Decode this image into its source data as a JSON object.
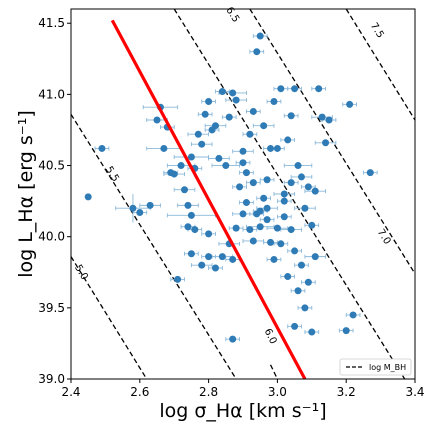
{
  "chart_data": {
    "type": "scatter",
    "xlabel": "log σ_Hα [km s⁻¹]",
    "ylabel": "log L_Hα [erg s⁻¹]",
    "xlim": [
      2.4,
      3.4
    ],
    "ylim": [
      39.0,
      41.6
    ],
    "x_ticks": [
      "2.4",
      "2.6",
      "2.8",
      "3.0",
      "3.2",
      "3.4"
    ],
    "y_ticks": [
      "39.0",
      "39.5",
      "40.0",
      "40.5",
      "41.0",
      "41.5"
    ],
    "legend": {
      "label": "log M_BH",
      "placement": "bottom-right"
    },
    "colors": {
      "points": "#2f7bb6",
      "error_bars": "#8ab8da",
      "fit_line": "#ff0000",
      "contours": "#000000"
    },
    "contours": [
      {
        "label": "5.0",
        "points": [
          [
            2.4,
            39.86
          ],
          [
            2.62,
            39.0
          ]
        ]
      },
      {
        "label": "5.5",
        "points": [
          [
            2.4,
            40.86
          ],
          [
            2.88,
            39.0
          ]
        ]
      },
      {
        "label": "6.0",
        "points": [
          [
            2.98,
            39.1
          ],
          [
            3.0,
            39.0
          ]
        ]
      },
      {
        "label": "6.5",
        "points": [
          [
            2.7,
            41.6
          ],
          [
            3.37,
            39.0
          ]
        ]
      },
      {
        "label": "7.0",
        "points": [
          [
            2.92,
            41.6
          ],
          [
            3.4,
            39.74
          ]
        ]
      },
      {
        "label": "7.5",
        "points": [
          [
            3.2,
            41.6
          ],
          [
            3.4,
            40.82
          ]
        ]
      }
    ],
    "contour_labels": [
      {
        "text": "5.0",
        "x": 2.43,
        "y": 39.75
      },
      {
        "text": "5.5",
        "x": 2.52,
        "y": 40.44
      },
      {
        "text": "6.5",
        "x": 2.87,
        "y": 41.56
      },
      {
        "text": "6.0",
        "x": 2.98,
        "y": 39.3
      },
      {
        "text": "7.0",
        "x": 3.31,
        "y": 40.0
      },
      {
        "text": "7.5",
        "x": 3.29,
        "y": 41.45
      }
    ],
    "fit_line": {
      "points": [
        [
          2.52,
          41.52
        ],
        [
          3.08,
          39.0
        ]
      ]
    },
    "series": [
      {
        "points": [
          [
            2.45,
            40.28,
            0.0,
            0.0
          ],
          [
            2.49,
            40.62,
            0.02,
            0.0
          ],
          [
            2.58,
            40.2,
            0.05,
            0.1
          ],
          [
            2.6,
            40.17,
            0.02,
            0.0
          ],
          [
            2.63,
            40.22,
            0.03,
            0.0
          ],
          [
            2.65,
            40.82,
            0.03,
            0.0
          ],
          [
            2.66,
            40.91,
            0.05,
            0.0
          ],
          [
            2.67,
            40.62,
            0.05,
            0.0
          ],
          [
            2.68,
            40.77,
            0.02,
            0.0
          ],
          [
            2.69,
            40.45,
            0.02,
            0.0
          ],
          [
            2.7,
            40.44,
            0.03,
            0.0
          ],
          [
            2.72,
            40.5,
            0.04,
            0.0
          ],
          [
            2.73,
            40.33,
            0.03,
            0.0
          ],
          [
            2.74,
            40.22,
            0.03,
            0.0
          ],
          [
            2.75,
            40.56,
            0.05,
            0.0
          ],
          [
            2.76,
            40.48,
            0.02,
            0.0
          ],
          [
            2.77,
            40.72,
            0.03,
            0.0
          ],
          [
            2.78,
            40.65,
            0.03,
            0.0
          ],
          [
            2.79,
            40.86,
            0.02,
            0.0
          ],
          [
            2.8,
            40.95,
            0.02,
            0.0
          ],
          [
            2.81,
            40.75,
            0.02,
            0.0
          ],
          [
            2.82,
            40.78,
            0.03,
            0.0
          ],
          [
            2.83,
            40.55,
            0.03,
            0.0
          ],
          [
            2.84,
            41.02,
            0.02,
            0.0
          ],
          [
            2.85,
            40.5,
            0.04,
            0.0
          ],
          [
            2.86,
            40.84,
            0.02,
            0.0
          ],
          [
            2.87,
            41.01,
            0.04,
            0.0
          ],
          [
            2.88,
            40.96,
            0.03,
            0.0
          ],
          [
            2.89,
            40.35,
            0.02,
            0.0
          ],
          [
            2.9,
            40.6,
            0.03,
            0.0
          ],
          [
            2.91,
            40.45,
            0.02,
            0.0
          ],
          [
            2.92,
            40.72,
            0.02,
            0.0
          ],
          [
            2.93,
            40.88,
            0.02,
            0.0
          ],
          [
            2.94,
            41.3,
            0.02,
            0.0
          ],
          [
            2.95,
            41.41,
            0.02,
            0.0
          ],
          [
            2.96,
            40.78,
            0.03,
            0.0
          ],
          [
            2.97,
            40.4,
            0.02,
            0.0
          ],
          [
            2.98,
            40.62,
            0.02,
            0.0
          ],
          [
            2.99,
            40.95,
            0.02,
            0.0
          ],
          [
            3.0,
            40.62,
            0.02,
            0.0
          ],
          [
            3.01,
            41.04,
            0.02,
            0.0
          ],
          [
            3.02,
            40.3,
            0.03,
            0.0
          ],
          [
            3.03,
            40.68,
            0.02,
            0.0
          ],
          [
            3.04,
            40.85,
            0.02,
            0.0
          ],
          [
            3.05,
            41.04,
            0.02,
            0.0
          ],
          [
            3.06,
            40.5,
            0.04,
            0.0
          ],
          [
            3.07,
            40.42,
            0.03,
            0.0
          ],
          [
            3.08,
            40.2,
            0.03,
            0.0
          ],
          [
            3.09,
            40.35,
            0.02,
            0.0
          ],
          [
            3.1,
            40.08,
            0.02,
            0.0
          ],
          [
            3.11,
            40.32,
            0.03,
            0.0
          ],
          [
            3.12,
            41.04,
            0.02,
            0.0
          ],
          [
            3.13,
            40.84,
            0.03,
            0.0
          ],
          [
            3.14,
            40.66,
            0.03,
            0.0
          ],
          [
            3.15,
            40.82,
            0.02,
            0.0
          ],
          [
            3.2,
            39.34,
            0.02,
            0.0
          ],
          [
            3.21,
            40.93,
            0.02,
            0.0
          ],
          [
            3.22,
            39.45,
            0.02,
            0.0
          ],
          [
            3.27,
            40.45,
            0.02,
            0.0
          ],
          [
            2.75,
            40.15,
            0.07,
            0.0
          ],
          [
            2.76,
            40.05,
            0.02,
            0.0
          ],
          [
            2.74,
            40.07,
            0.02,
            0.0
          ],
          [
            2.75,
            39.88,
            0.02,
            0.0
          ],
          [
            2.78,
            39.8,
            0.03,
            0.0
          ],
          [
            2.8,
            39.86,
            0.02,
            0.0
          ],
          [
            2.82,
            39.78,
            0.02,
            0.0
          ],
          [
            2.84,
            39.86,
            0.03,
            0.0
          ],
          [
            2.86,
            39.95,
            0.03,
            0.0
          ],
          [
            2.87,
            39.84,
            0.02,
            0.0
          ],
          [
            2.87,
            39.28,
            0.02,
            0.0
          ],
          [
            2.88,
            40.06,
            0.02,
            0.0
          ],
          [
            2.9,
            40.16,
            0.03,
            0.0
          ],
          [
            2.91,
            40.24,
            0.02,
            0.0
          ],
          [
            2.92,
            40.05,
            0.02,
            0.0
          ],
          [
            2.93,
            39.97,
            0.03,
            0.0
          ],
          [
            2.94,
            40.16,
            0.02,
            0.0
          ],
          [
            2.95,
            40.07,
            0.04,
            0.0
          ],
          [
            2.96,
            40.27,
            0.02,
            0.0
          ],
          [
            2.97,
            40.2,
            0.03,
            0.0
          ],
          [
            2.98,
            39.96,
            0.02,
            0.0
          ],
          [
            2.99,
            39.84,
            0.02,
            0.0
          ],
          [
            3.0,
            40.06,
            0.03,
            0.0
          ],
          [
            3.01,
            39.95,
            0.02,
            0.0
          ],
          [
            3.02,
            40.14,
            0.02,
            0.0
          ],
          [
            3.03,
            39.72,
            0.02,
            0.0
          ],
          [
            3.04,
            40.05,
            0.03,
            0.0
          ],
          [
            3.05,
            39.9,
            0.02,
            0.0
          ],
          [
            3.06,
            39.62,
            0.02,
            0.0
          ],
          [
            3.07,
            39.8,
            0.02,
            0.0
          ],
          [
            3.08,
            39.5,
            0.02,
            0.0
          ],
          [
            3.09,
            39.68,
            0.02,
            0.0
          ],
          [
            3.1,
            39.33,
            0.02,
            0.0
          ],
          [
            3.11,
            39.86,
            0.03,
            0.0
          ],
          [
            3.05,
            39.37,
            0.02,
            0.0
          ],
          [
            2.9,
            40.52,
            0.02,
            0.0
          ],
          [
            2.93,
            40.38,
            0.02,
            0.0
          ],
          [
            2.95,
            40.18,
            0.02,
            0.0
          ],
          [
            2.97,
            40.12,
            0.02,
            0.0
          ],
          [
            3.02,
            40.25,
            0.02,
            0.0
          ],
          [
            3.04,
            40.38,
            0.02,
            0.0
          ],
          [
            2.71,
            39.7,
            0.02,
            0.0
          ],
          [
            2.8,
            40.02,
            0.02,
            0.0
          ]
        ]
      }
    ]
  }
}
